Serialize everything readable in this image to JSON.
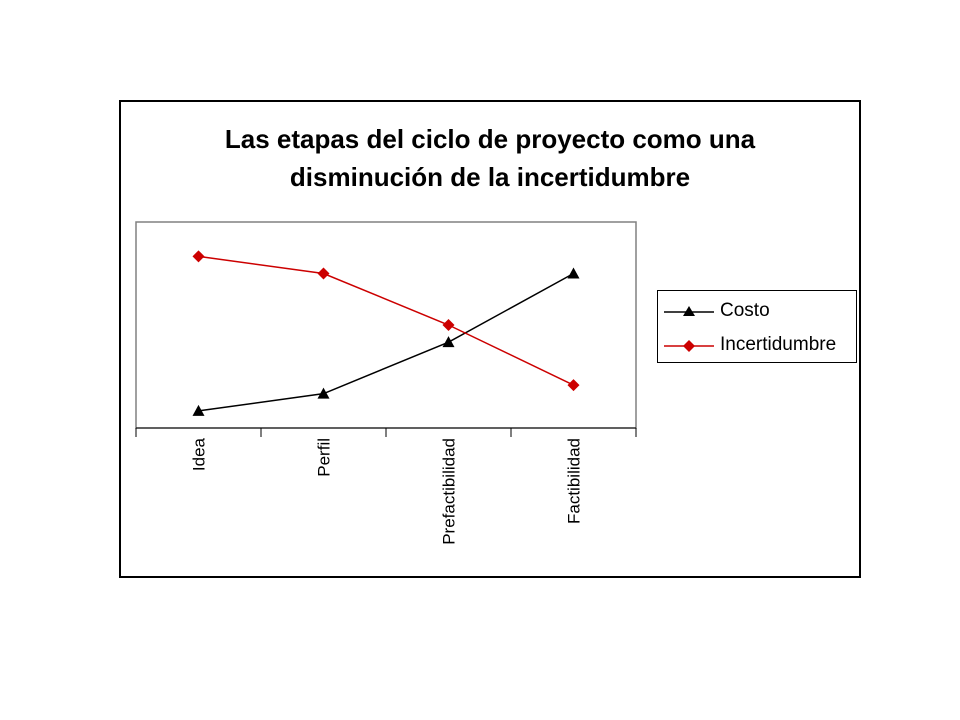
{
  "chart_data": {
    "type": "line",
    "title_lines": [
      "Las etapas del ciclo de proyecto como una",
      "disminución de la incertidumbre"
    ],
    "categories": [
      "Idea",
      "Perfil",
      "Prefactibilidad",
      "Factibilidad"
    ],
    "series": [
      {
        "name": "Costo",
        "values": [
          1,
          2,
          5,
          9
        ],
        "color": "#000000",
        "marker": "triangle"
      },
      {
        "name": "Incertidumbre",
        "values": [
          10,
          9,
          6,
          2.5
        ],
        "color": "#cc0000",
        "marker": "diamond"
      }
    ],
    "ylim": [
      0,
      12
    ],
    "grid": false,
    "legend_position": "right",
    "plot_background": "#ffffff"
  }
}
